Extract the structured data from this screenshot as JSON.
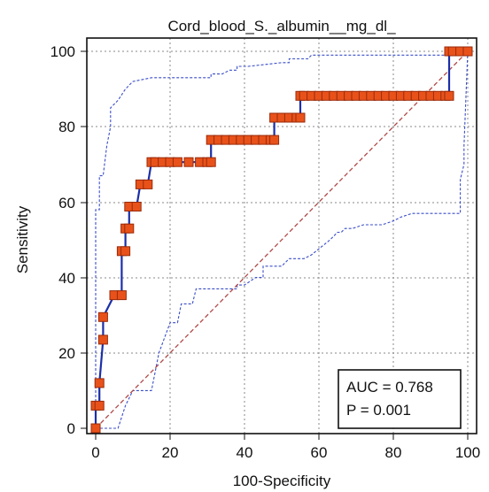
{
  "chart_data": {
    "type": "line",
    "title": "Cord_blood_S._albumin__mg_dl_",
    "xlabel": "100-Specificity",
    "ylabel": "Sensitivity",
    "xlim": [
      0,
      100
    ],
    "ylim": [
      0,
      100
    ],
    "xticks": [
      "0",
      "20",
      "40",
      "60",
      "80",
      "100"
    ],
    "yticks": [
      "0",
      "20",
      "40",
      "60",
      "80",
      "100"
    ],
    "grid": true,
    "annotation": {
      "auc": "AUC = 0.768",
      "p": "P = 0.001"
    },
    "colors": {
      "roc": "#1c2fa8",
      "marker_fill": "#e8521a",
      "marker_edge": "#9a2a0a",
      "ci": "#3a4ec8",
      "diagonal": "#b04848",
      "grid": "#8a8a8a"
    },
    "series": [
      {
        "style": "roc",
        "x": [
          0,
          0,
          1,
          1,
          2,
          2,
          5,
          7,
          7,
          8,
          8,
          9,
          9,
          11,
          12,
          14,
          15,
          16,
          18,
          20,
          22,
          25,
          28,
          30,
          31,
          31,
          33,
          35,
          37,
          39,
          41,
          43,
          45,
          47,
          48,
          48,
          50,
          52,
          54,
          55,
          55,
          56,
          58,
          60,
          62,
          64,
          66,
          68,
          70,
          72,
          74,
          76,
          78,
          80,
          82,
          84,
          86,
          88,
          90,
          92,
          94,
          95,
          95,
          96,
          98,
          100
        ],
        "y": [
          0,
          6,
          6,
          12,
          23.5,
          29.5,
          35.3,
          35.3,
          47,
          47,
          53,
          53,
          58.8,
          58.8,
          64.7,
          64.7,
          70.6,
          70.6,
          70.6,
          70.6,
          70.6,
          70.6,
          70.6,
          70.6,
          70.6,
          76.5,
          76.5,
          76.5,
          76.5,
          76.5,
          76.5,
          76.5,
          76.5,
          76.5,
          76.5,
          82.4,
          82.4,
          82.4,
          82.4,
          82.4,
          88.2,
          88.2,
          88.2,
          88.2,
          88.2,
          88.2,
          88.2,
          88.2,
          88.2,
          88.2,
          88.2,
          88.2,
          88.2,
          88.2,
          88.2,
          88.2,
          88.2,
          88.2,
          88.2,
          88.2,
          88.2,
          88.2,
          100,
          100,
          100,
          100
        ]
      },
      {
        "style": "ci",
        "x": [
          0,
          0,
          1,
          1,
          2,
          3,
          4,
          4,
          6,
          8,
          10,
          10,
          15,
          31,
          31,
          34,
          36,
          38,
          38,
          41,
          50,
          52,
          52,
          54,
          57,
          58,
          59,
          60,
          61,
          62,
          63,
          66,
          70,
          74,
          78,
          82,
          86,
          90,
          94,
          100
        ],
        "y": [
          0,
          58,
          58,
          67,
          67,
          75,
          80,
          85,
          87,
          90,
          92,
          92,
          93,
          93,
          94,
          94,
          95,
          95,
          96,
          96,
          97,
          97,
          98,
          98,
          98,
          99,
          99,
          99,
          99,
          99,
          99,
          99,
          99,
          99,
          99,
          99,
          99,
          99,
          99,
          100
        ]
      },
      {
        "style": "ci",
        "x": [
          0,
          4,
          6,
          8,
          10,
          10,
          15,
          17,
          20,
          22,
          23,
          26,
          27,
          30,
          32,
          38,
          38,
          40,
          43,
          45,
          45,
          48,
          50,
          52,
          56,
          58,
          63,
          65,
          66,
          67,
          69,
          72,
          75,
          77,
          80,
          82,
          85,
          90,
          94,
          96,
          98,
          98,
          99,
          99,
          100
        ],
        "y": [
          0,
          0,
          0,
          6,
          10,
          10,
          10,
          20,
          28,
          28,
          33,
          33,
          37,
          37,
          37,
          37,
          38,
          38,
          40,
          40,
          43,
          43,
          43,
          45,
          45,
          46,
          50,
          52,
          52,
          53,
          53,
          54,
          54,
          54,
          55,
          56,
          57,
          57,
          57,
          57,
          57,
          66,
          70,
          75,
          100
        ]
      },
      {
        "style": "diagonal",
        "x": [
          0,
          100
        ],
        "y": [
          0,
          100
        ]
      }
    ]
  }
}
